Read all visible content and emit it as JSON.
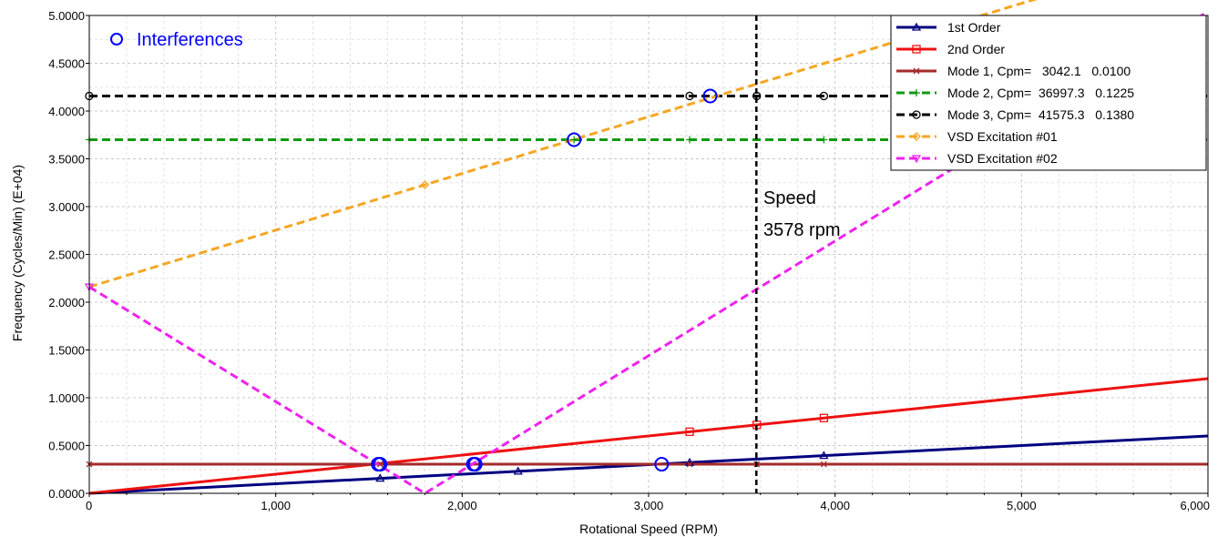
{
  "chart_data": {
    "type": "line",
    "xlabel": "Rotational Speed (RPM)",
    "ylabel": "Frequency (Cycles/Min) (E+04)",
    "xlim": [
      0,
      6000
    ],
    "ylim": [
      0,
      5
    ],
    "x_ticks": [
      0,
      1000,
      2000,
      3000,
      4000,
      5000,
      6000
    ],
    "x_tick_labels": [
      "0",
      "1,000",
      "2,000",
      "3,000",
      "4,000",
      "5,000",
      "6,000"
    ],
    "y_ticks": [
      0,
      0.5,
      1,
      1.5,
      2,
      2.5,
      3,
      3.5,
      4,
      4.5,
      5
    ],
    "y_tick_labels": [
      "0.0000",
      "0.5000",
      "1.0000",
      "1.5000",
      "2.0000",
      "2.5000",
      "3.0000",
      "3.5000",
      "4.0000",
      "4.5000",
      "5.0000"
    ],
    "grid": true,
    "legend_position": "top-right",
    "series": [
      {
        "name": "1st Order",
        "color": "#000080",
        "style": "solid",
        "marker": "triangle",
        "x": [
          0,
          6000
        ],
        "y": [
          0,
          0.6
        ],
        "marker_x": [
          1560,
          2300,
          3220,
          3940
        ]
      },
      {
        "name": "2nd Order",
        "color": "#ee1111",
        "style": "solid",
        "marker": "square",
        "x": [
          0,
          6000
        ],
        "y": [
          0,
          1.2
        ],
        "marker_x": [
          3220,
          3580,
          3940
        ]
      },
      {
        "name": "Mode 1, Cpm=   3042.1   0.0100",
        "color": "#a52a2a",
        "style": "solid",
        "marker": "x",
        "x": [
          0,
          6000
        ],
        "y": [
          0.30421,
          0.30421
        ],
        "marker_x": [
          0,
          1560,
          3220,
          3580,
          3940
        ]
      },
      {
        "name": "Mode 2, Cpm=  36997.3   0.1225",
        "color": "#119911",
        "style": "dashed",
        "marker": "plus",
        "x": [
          0,
          6000
        ],
        "y": [
          3.69973,
          3.69973
        ],
        "marker_x": [
          0,
          2600,
          3220,
          3940
        ]
      },
      {
        "name": "Mode 3, Cpm=  41575.3   0.1380",
        "color": "#000000",
        "style": "dashed",
        "marker": "circle",
        "x": [
          0,
          6000
        ],
        "y": [
          4.15753,
          4.15753
        ],
        "marker_x": [
          0,
          3220,
          3580,
          3940
        ]
      },
      {
        "name": "VSD Excitation #01",
        "color": "#f5a623",
        "style": "dashed",
        "marker": "diamond",
        "x": [
          0,
          6000
        ],
        "y": [
          2.16,
          5.72
        ],
        "marker_x": [
          1800
        ]
      },
      {
        "name": "VSD Excitation #02",
        "color": "#ee22ee",
        "style": "dashed",
        "marker": "down-triangle",
        "x": [
          0,
          1800,
          6000
        ],
        "y": [
          2.16,
          0,
          5.04
        ],
        "marker_x": [
          0
        ]
      }
    ],
    "interferences": {
      "label": "Interferences",
      "color": "#0000ff",
      "points": [
        {
          "x": 1550,
          "y": 0.30421
        },
        {
          "x": 1560,
          "y": 0.30421
        },
        {
          "x": 2060,
          "y": 0.30421
        },
        {
          "x": 2070,
          "y": 0.30421
        },
        {
          "x": 3070,
          "y": 0.30421
        },
        {
          "x": 2600,
          "y": 3.69973
        },
        {
          "x": 3330,
          "y": 4.15753
        }
      ]
    },
    "speed_line": {
      "x": 3578,
      "label_line1": "Speed",
      "label_line2": "3578 rpm",
      "color": "#000000"
    }
  }
}
